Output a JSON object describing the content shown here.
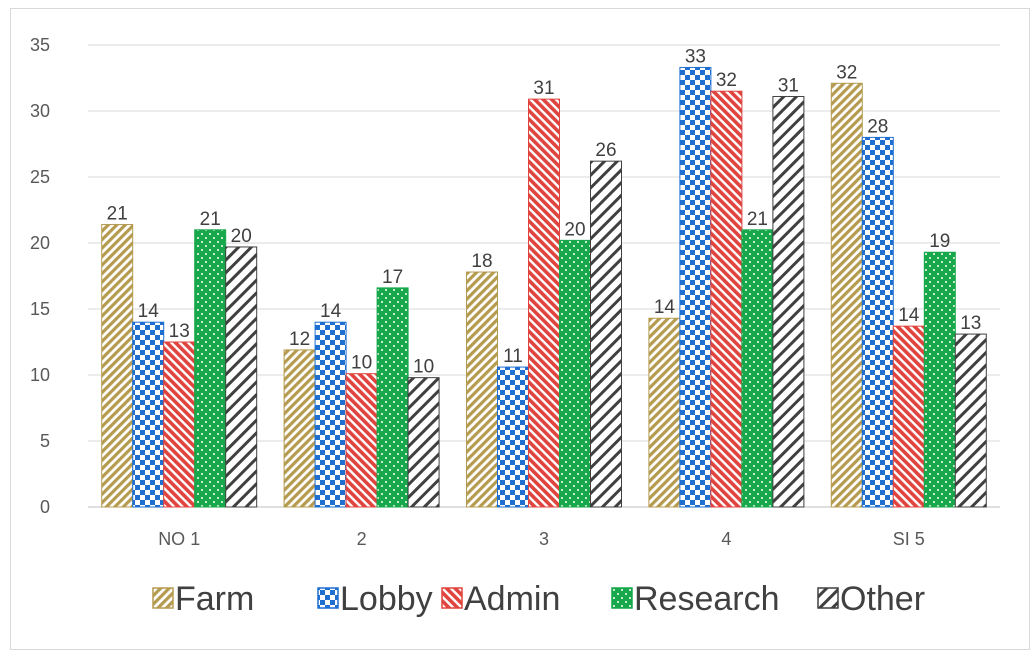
{
  "chart_data": {
    "type": "bar",
    "title": "",
    "xlabel": "",
    "ylabel": "",
    "categories": [
      "NO 1",
      "2",
      "3",
      "4",
      "SI 5"
    ],
    "ylim": [
      0,
      35
    ],
    "yticks": [
      0,
      5,
      10,
      15,
      20,
      25,
      30,
      35
    ],
    "grid": true,
    "legend_position": "bottom",
    "series": [
      {
        "name": "Farm",
        "values": [
          21.4,
          11.9,
          17.8,
          14.3,
          32.1
        ],
        "labels": [
          "21",
          "12",
          "18",
          "14",
          "32"
        ],
        "color": "#c8b273",
        "pattern": "diagonal-stripes"
      },
      {
        "name": "Lobby",
        "values": [
          14.0,
          14.0,
          10.6,
          33.3,
          28.0
        ],
        "labels": [
          "14",
          "14",
          "11",
          "33",
          "28"
        ],
        "color": "#1f6fd1",
        "pattern": "checkerboard"
      },
      {
        "name": "Admin",
        "values": [
          12.5,
          10.1,
          30.9,
          31.5,
          13.7
        ],
        "labels": [
          "13",
          "10",
          "31",
          "32",
          "14"
        ],
        "color": "#e0443e",
        "pattern": "diagonal-stripes"
      },
      {
        "name": "Research",
        "values": [
          21.0,
          16.6,
          20.2,
          21.0,
          19.3
        ],
        "labels": [
          "21",
          "17",
          "20",
          "21",
          "19"
        ],
        "color": "#16a84a",
        "pattern": "dots"
      },
      {
        "name": "Other",
        "values": [
          19.7,
          9.8,
          26.2,
          31.1,
          13.1
        ],
        "labels": [
          "20",
          "10",
          "26",
          "31",
          "13"
        ],
        "color": "#404040",
        "pattern": "wide-diagonal-stripes"
      }
    ]
  }
}
